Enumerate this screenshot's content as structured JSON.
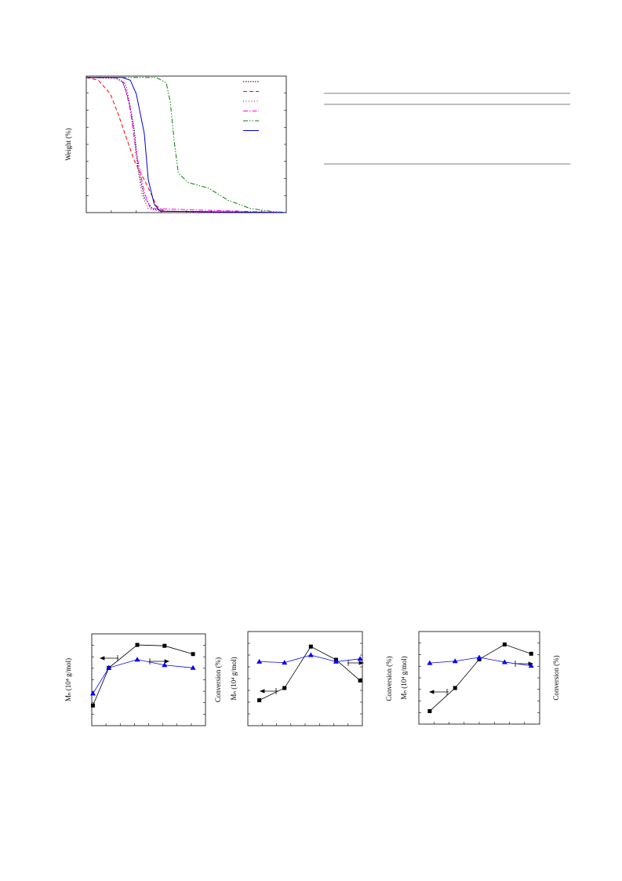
{
  "chart_data": [
    {
      "type": "line",
      "y_label": "Weight (%)",
      "xlim": [
        0,
        100
      ],
      "ylim": [
        0,
        100
      ],
      "legend": "upper right",
      "series": [
        {
          "color": "#000000",
          "dash": "1.5,1.5",
          "x": [
            0,
            14,
            18,
            21,
            24,
            26,
            29,
            33,
            39,
            100
          ],
          "values": [
            99,
            99,
            96,
            84,
            61,
            32,
            11,
            3,
            1,
            0
          ]
        },
        {
          "color": "#ff0000",
          "dash": "5,3",
          "x": [
            0,
            6,
            12,
            16,
            20,
            24,
            29,
            33,
            35,
            39,
            100
          ],
          "values": [
            99,
            97,
            87,
            72,
            55,
            38,
            24,
            12,
            5,
            1,
            0
          ]
        },
        {
          "color": "#800080",
          "dash": "1,2.5",
          "x": [
            0,
            16,
            20,
            23,
            25,
            28,
            31,
            39,
            100
          ],
          "values": [
            99,
            98,
            93,
            70,
            38,
            12,
            3,
            0,
            0
          ]
        },
        {
          "color": "#ff00ff",
          "dash": "6,2,1.5,2",
          "x": [
            0,
            15,
            19,
            22,
            25,
            29,
            32,
            100
          ],
          "values": [
            99,
            99,
            95,
            75,
            44,
            15,
            3,
            0
          ]
        },
        {
          "color": "#008000",
          "dash": "6,2,1.5,2,1.5,2",
          "x": [
            0,
            35,
            40,
            42,
            44,
            46,
            51,
            61,
            71,
            82,
            92,
            100
          ],
          "values": [
            99,
            99,
            95,
            81,
            52,
            29,
            22,
            18,
            9,
            3,
            1,
            0
          ]
        },
        {
          "color": "#0000cc",
          "dash": "none",
          "x": [
            0,
            18,
            22,
            25,
            29,
            31,
            34,
            37,
            100
          ],
          "values": [
            99,
            99,
            97,
            87,
            58,
            24,
            6,
            1,
            0
          ]
        }
      ]
    },
    {
      "type": "line",
      "y_label": "Mₙ (10⁴ g/mol)",
      "y2_label": "Conversion (%)",
      "xlim": [
        0,
        100
      ],
      "ylim": [
        0,
        100
      ],
      "y2lim": [
        0,
        100
      ],
      "x": [
        1,
        15,
        40,
        64,
        89
      ],
      "series": [
        {
          "color": "#000000",
          "marker": "square",
          "values": [
            22,
            63,
            88,
            87,
            78
          ]
        },
        {
          "color": "#0000ff",
          "marker": "triangle",
          "axis": "y2",
          "values": [
            35,
            63,
            72,
            66,
            63
          ]
        }
      ]
    },
    {
      "type": "line",
      "y_label": "Mₙ (10⁴ g/mol)",
      "y2_label": "Conversion (%)",
      "xlim": [
        0,
        100
      ],
      "ylim": [
        0,
        100
      ],
      "y2lim": [
        0,
        100
      ],
      "x": [
        10,
        32,
        55,
        77,
        98
      ],
      "series": [
        {
          "color": "#000000",
          "marker": "square",
          "values": [
            27,
            40,
            84,
            70,
            48
          ]
        },
        {
          "color": "#0000ff",
          "marker": "triangle",
          "axis": "y2",
          "values": [
            68,
            67,
            75,
            68,
            71
          ]
        }
      ]
    },
    {
      "type": "line",
      "y_label": "Mₙ (10⁴ g/mol)",
      "y2_label": "Conversion (%)",
      "xlim": [
        0,
        100
      ],
      "ylim": [
        0,
        100
      ],
      "y2lim": [
        0,
        100
      ],
      "x": [
        9,
        30,
        50,
        71,
        93
      ],
      "series": [
        {
          "color": "#000000",
          "marker": "square",
          "values": [
            14,
            39,
            70,
            86,
            76
          ]
        },
        {
          "color": "#0000ff",
          "marker": "triangle",
          "axis": "y2",
          "values": [
            66,
            68,
            72,
            67,
            63
          ]
        }
      ]
    }
  ]
}
